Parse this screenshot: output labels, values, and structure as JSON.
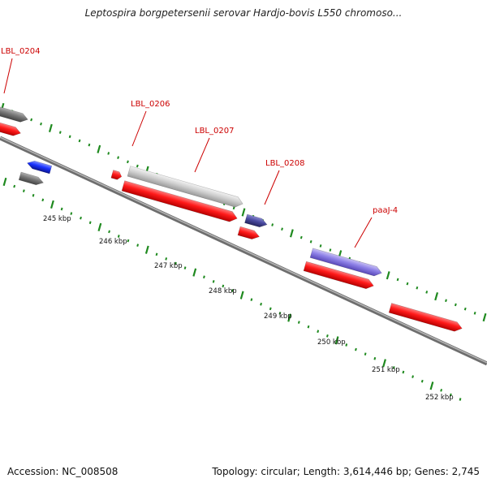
{
  "title": "Leptospira borgpetersenii serovar Hardjo-bovis L550 chromoso...",
  "footer": {
    "accession": "Accession: NC_008508",
    "summary": "Topology: circular; Length: 3,614,446 bp; Genes: 2,745"
  },
  "colors": {
    "backbone": "#8a8a8a",
    "tick": "#1f8a1f",
    "label": "#cc0000",
    "red": "#ff1a1a",
    "gray": "#777777",
    "lightgray": "#cfcfcf",
    "blue": "#1a33ff",
    "navy": "#4a4aa0",
    "lavender": "#8c7fe6"
  },
  "gene_labels": [
    "LBL_0204",
    "LBL_0206",
    "LBL_0207",
    "LBL_0208",
    "paaJ-4"
  ],
  "kbp_ticks": [
    "245 kbp",
    "246 kbp",
    "247 kbp",
    "248 kbp",
    "249 kbp",
    "250 kbp",
    "251 kbp",
    "252 kbp"
  ]
}
